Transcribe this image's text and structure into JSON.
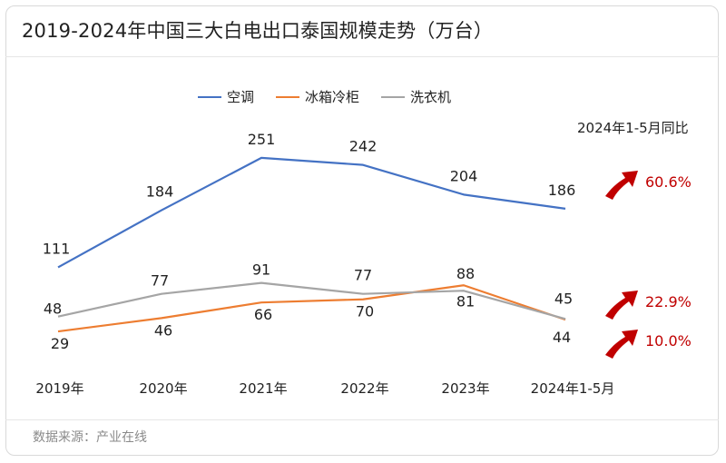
{
  "title": "2019-2024年中国三大白电出口泰国规模走势（万台）",
  "source": "数据来源：产业在线",
  "yoy_title": "2024年1-5月同比",
  "colors": {
    "air_conditioner": "#4472c4",
    "fridge": "#ed7d31",
    "washer": "#a5a5a5",
    "arrow": "#c00000",
    "growth_text": "#c00000"
  },
  "chart_data": {
    "type": "line",
    "categories": [
      "2019年",
      "2020年",
      "2021年",
      "2022年",
      "2023年",
      "2024年1-5月"
    ],
    "series": [
      {
        "name": "空调",
        "key": "air_conditioner",
        "values": [
          111,
          184,
          251,
          242,
          204,
          186
        ],
        "yoy": "60.6%"
      },
      {
        "name": "冰箱冷柜",
        "key": "fridge",
        "values": [
          29,
          46,
          66,
          70,
          88,
          44
        ],
        "yoy": "10.0%"
      },
      {
        "name": "洗衣机",
        "key": "washer",
        "values": [
          48,
          77,
          91,
          77,
          81,
          45
        ],
        "yoy": "22.9%"
      }
    ],
    "legend_position": "top-center",
    "grid": false
  }
}
